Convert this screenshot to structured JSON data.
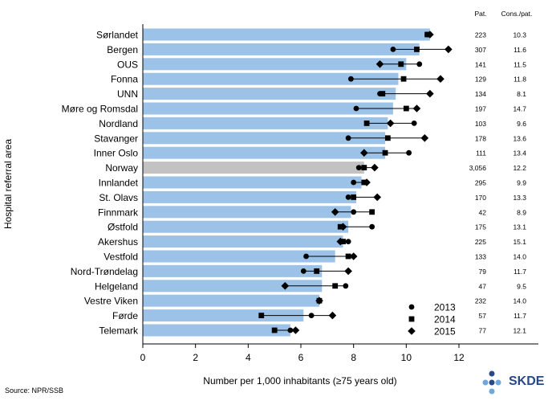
{
  "chart_data": {
    "type": "bar",
    "xlabel": "Number per 1,000 inhabitants (≥75 years old)",
    "ylabel": "Hospital referral area",
    "xlim": [
      0,
      12
    ],
    "x_ticks": [
      "0",
      "2",
      "4",
      "6",
      "8",
      "10",
      "12"
    ],
    "grid": false,
    "legend_position": "bottom-right",
    "bar_color": "#9cc2e8",
    "highlight_bar_color": "#c2c2c2",
    "highlight_category": "Norway",
    "categories": [
      "Sørlandet",
      "Bergen",
      "OUS",
      "Fonna",
      "UNN",
      "Møre og Romsdal",
      "Nordland",
      "Stavanger",
      "Inner Oslo",
      "Norway",
      "Innlandet",
      "St. Olavs",
      "Finnmark",
      "Østfold",
      "Akershus",
      "Vestfold",
      "Nord-Trøndelag",
      "Helgeland",
      "Vestre Viken",
      "Førde",
      "Telemark"
    ],
    "values": [
      10.9,
      10.5,
      10.0,
      9.7,
      9.6,
      9.5,
      9.3,
      9.2,
      9.2,
      8.4,
      8.3,
      8.1,
      7.9,
      7.8,
      7.6,
      7.3,
      6.8,
      6.8,
      6.7,
      6.1,
      5.6
    ],
    "series": [
      {
        "name": "2013",
        "marker": "circle",
        "values": [
          10.8,
          9.5,
          10.5,
          7.9,
          9.0,
          8.1,
          10.3,
          7.8,
          10.1,
          8.2,
          8.0,
          7.8,
          8.0,
          8.7,
          7.8,
          6.2,
          6.1,
          7.7,
          6.7,
          6.4,
          5.6
        ]
      },
      {
        "name": "2014",
        "marker": "square",
        "values": [
          10.8,
          10.4,
          9.8,
          9.9,
          9.1,
          10.0,
          8.5,
          9.3,
          9.2,
          8.4,
          8.4,
          8.0,
          8.7,
          7.5,
          7.6,
          7.8,
          6.6,
          7.3,
          6.7,
          4.5,
          5.0
        ]
      },
      {
        "name": "2015",
        "marker": "diamond",
        "values": [
          10.9,
          11.6,
          9.0,
          11.3,
          10.9,
          10.4,
          9.4,
          10.7,
          8.4,
          8.8,
          8.5,
          8.9,
          7.3,
          7.6,
          7.5,
          8.0,
          7.8,
          5.4,
          6.7,
          7.2,
          5.8
        ]
      }
    ],
    "table": {
      "headers": [
        "Pat.",
        "Cons./pat."
      ],
      "pat": [
        "223",
        "307",
        "141",
        "129",
        "134",
        "197",
        "103",
        "178",
        "111",
        "3,056",
        "295",
        "170",
        "42",
        "175",
        "225",
        "133",
        "79",
        "47",
        "232",
        "57",
        "77"
      ],
      "cons": [
        "10.3",
        "11.6",
        "11.5",
        "11.8",
        "8.1",
        "14.7",
        "9.6",
        "13.6",
        "13.4",
        "12.2",
        "9.9",
        "13.3",
        "8.9",
        "13.1",
        "15.1",
        "14.0",
        "11.7",
        "9.5",
        "14.0",
        "11.7",
        "12.1"
      ]
    }
  },
  "source": "Source: NPR/SSB",
  "logo_text": "SKDE"
}
